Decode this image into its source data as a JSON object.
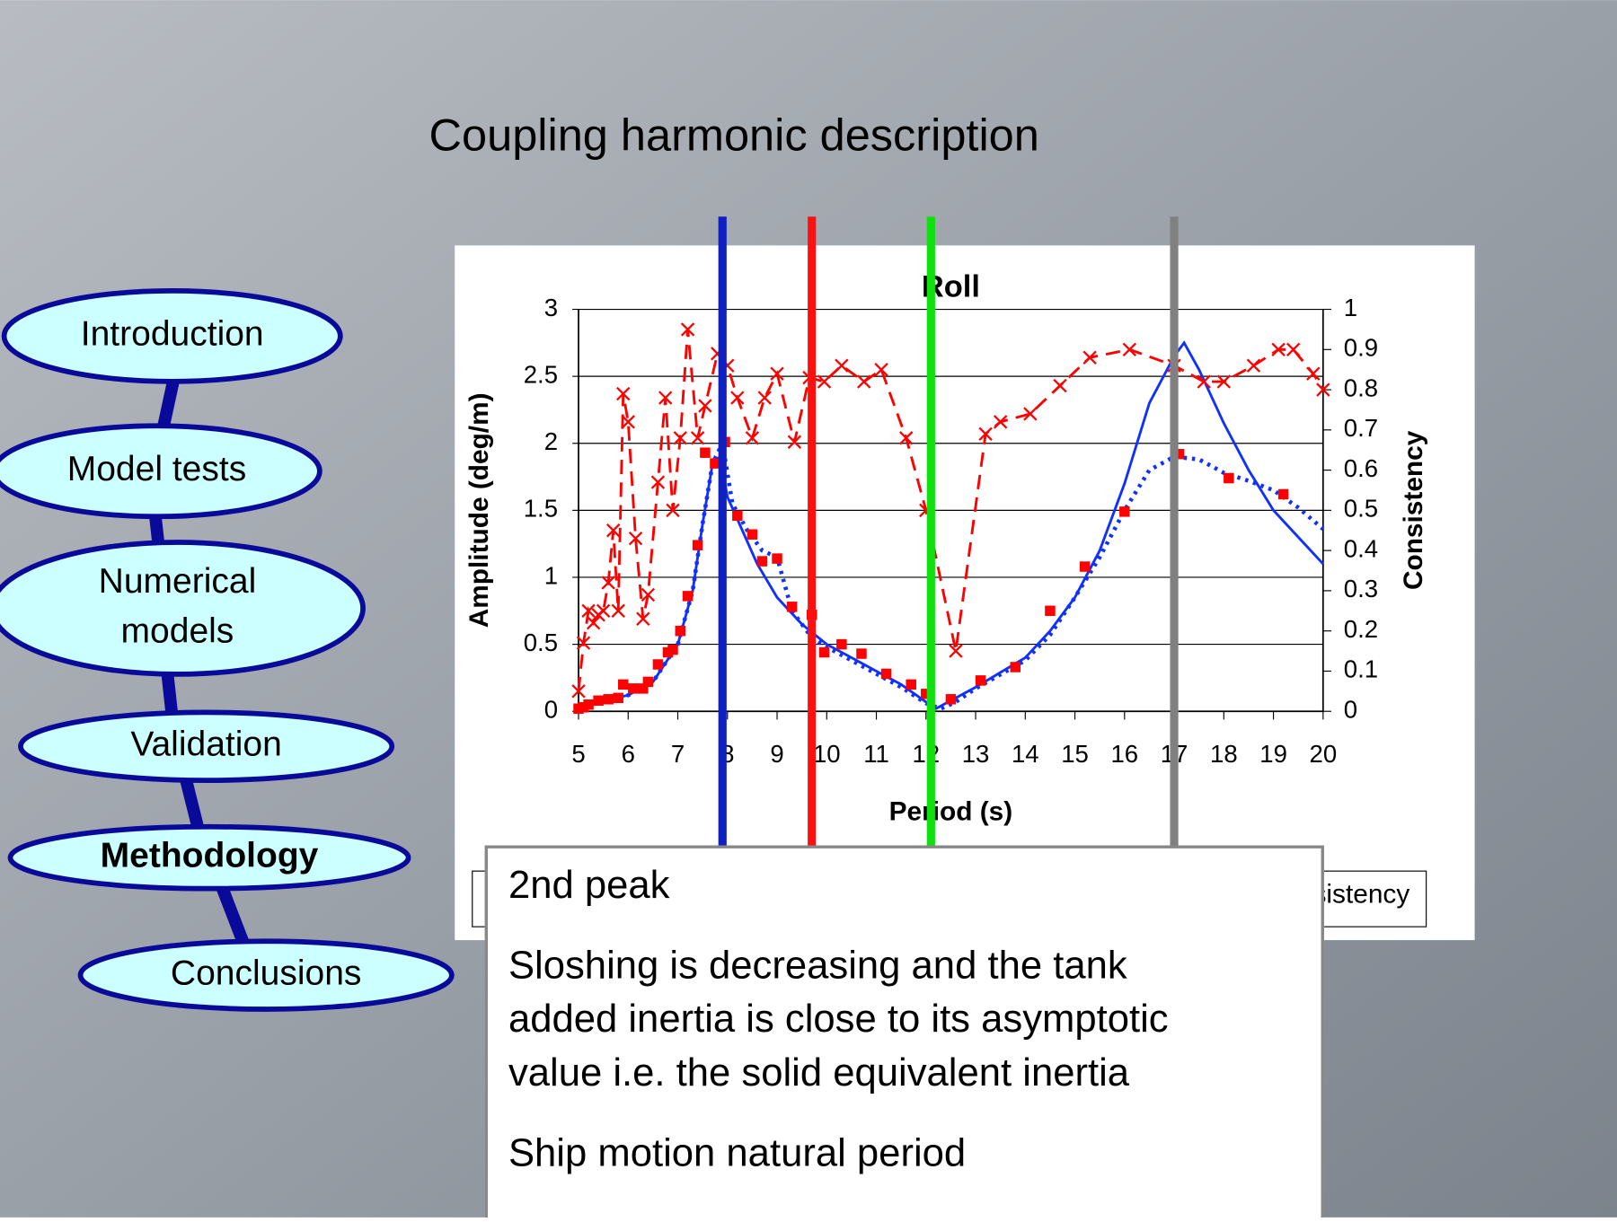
{
  "slide_title": "Coupling harmonic description",
  "nav": [
    [
      "Introduction"
    ],
    [
      "Model tests"
    ],
    [
      "Numerical",
      "models"
    ],
    [
      "Validation"
    ],
    [
      "Methodology"
    ],
    [
      "Conclusions"
    ]
  ],
  "callout": {
    "heading": "2nd peak",
    "lines": [
      "Sloshing is decreasing and the tank",
      "added inertia is close to its asymptotic",
      "value i.e. the solid equivalent inertia"
    ],
    "footer": "Ship motion natural period"
  },
  "chart_data": {
    "type": "line",
    "title": "Roll",
    "xlabel": "Period (s)",
    "ylabel": "Amplitude (deg/m)",
    "y2label": "Consistency",
    "xlim": [
      5,
      20
    ],
    "xticks": [
      5,
      6,
      7,
      8,
      9,
      10,
      11,
      12,
      13,
      14,
      15,
      16,
      17,
      18,
      19,
      20
    ],
    "ylim": [
      0,
      3
    ],
    "yticks": [
      0,
      0.5,
      1,
      1.5,
      2,
      2.5,
      3
    ],
    "y2lim": [
      0,
      1
    ],
    "y2ticks": [
      0,
      0.1,
      0.2,
      0.3,
      0.4,
      0.5,
      0.6,
      0.7,
      0.8,
      0.9,
      1
    ],
    "grid": true,
    "markers": [
      {
        "x": 7.9,
        "color": "#1020c0"
      },
      {
        "x": 9.7,
        "color": "#ff1010"
      },
      {
        "x": 12.1,
        "color": "#10e010"
      },
      {
        "x": 17.0,
        "color": "#808080"
      }
    ],
    "series": [
      {
        "color": "#1030ff",
        "style": "solid",
        "x": [
          5,
          5.5,
          6,
          6.5,
          7,
          7.3,
          7.5,
          7.7,
          7.85,
          8,
          8.3,
          8.6,
          9,
          9.5,
          10,
          10.5,
          11,
          11.5,
          12,
          12.2,
          12.5,
          13,
          14,
          14.5,
          15,
          15.5,
          16,
          16.5,
          17,
          17.2,
          17.5,
          18,
          18.5,
          19,
          19.5,
          20
        ],
        "y": [
          0.05,
          0.08,
          0.12,
          0.22,
          0.5,
          0.9,
          1.4,
          1.85,
          1.9,
          1.6,
          1.35,
          1.1,
          0.85,
          0.65,
          0.5,
          0.4,
          0.3,
          0.2,
          0.07,
          0.02,
          0.08,
          0.18,
          0.4,
          0.6,
          0.85,
          1.2,
          1.7,
          2.3,
          2.65,
          2.75,
          2.55,
          2.15,
          1.8,
          1.5,
          1.3,
          1.1
        ]
      },
      {
        "color": "#1030ff",
        "style": "dotted",
        "x": [
          5,
          5.5,
          6,
          6.5,
          7,
          7.3,
          7.5,
          7.7,
          7.9,
          8.1,
          8.4,
          8.7,
          9,
          9.3,
          9.7,
          10,
          10.5,
          11,
          11.5,
          12,
          12.3,
          12.6,
          13,
          14,
          14.5,
          15,
          15.5,
          16,
          16.5,
          17,
          17.5,
          18,
          18.5,
          19,
          19.5,
          20
        ],
        "y": [
          0.04,
          0.07,
          0.12,
          0.22,
          0.5,
          0.9,
          1.4,
          1.85,
          2.0,
          1.55,
          1.35,
          1.2,
          1.15,
          0.75,
          0.55,
          0.48,
          0.38,
          0.28,
          0.18,
          0.06,
          0.02,
          0.07,
          0.17,
          0.38,
          0.57,
          0.85,
          1.15,
          1.5,
          1.8,
          1.9,
          1.88,
          1.78,
          1.72,
          1.65,
          1.52,
          1.36
        ]
      },
      {
        "color": "#ff0000",
        "style": "none",
        "marker": "square",
        "x": [
          5,
          5.1,
          5.2,
          5.4,
          5.6,
          5.8,
          5.9,
          6.1,
          6.3,
          6.4,
          6.6,
          6.8,
          6.9,
          7.05,
          7.2,
          7.4,
          7.55,
          7.75,
          7.95,
          8.2,
          8.5,
          8.7,
          9.0,
          9.3,
          9.7,
          9.95,
          10.3,
          10.7,
          11.2,
          11.7,
          12.0,
          12.5,
          13.1,
          13.8,
          14.5,
          15.2,
          16.0,
          17.1,
          18.1,
          19.2
        ],
        "y": [
          0.02,
          0.03,
          0.05,
          0.08,
          0.09,
          0.1,
          0.2,
          0.17,
          0.17,
          0.22,
          0.35,
          0.44,
          0.46,
          0.6,
          0.86,
          1.24,
          1.93,
          1.85,
          2.01,
          1.46,
          1.32,
          1.12,
          1.14,
          0.78,
          0.72,
          0.44,
          0.5,
          0.43,
          0.28,
          0.2,
          0.13,
          0.09,
          0.23,
          0.33,
          0.75,
          1.08,
          1.49,
          1.92,
          1.74,
          1.62
        ]
      },
      {
        "name": "Consistency",
        "axis": "y2",
        "color": "#ff0000",
        "style": "dashed",
        "marker": "x",
        "x": [
          5,
          5.1,
          5.2,
          5.3,
          5.4,
          5.5,
          5.6,
          5.7,
          5.8,
          5.9,
          6.0,
          6.15,
          6.3,
          6.4,
          6.6,
          6.75,
          6.9,
          7.05,
          7.2,
          7.4,
          7.55,
          7.8,
          8.0,
          8.2,
          8.5,
          8.75,
          9.0,
          9.35,
          9.65,
          9.95,
          10.3,
          10.75,
          11.1,
          11.6,
          12.0,
          12.6,
          13.2,
          13.5,
          14.1,
          14.7,
          15.3,
          16.1,
          17.0,
          17.6,
          18.0,
          18.6,
          19.1,
          19.4,
          19.8,
          20.0
        ],
        "y": [
          0.05,
          0.17,
          0.25,
          0.22,
          0.24,
          0.25,
          0.32,
          0.45,
          0.25,
          0.79,
          0.72,
          0.43,
          0.23,
          0.29,
          0.57,
          0.78,
          0.5,
          0.68,
          0.95,
          0.68,
          0.76,
          0.89,
          0.86,
          0.78,
          0.68,
          0.78,
          0.84,
          0.67,
          0.83,
          0.82,
          0.86,
          0.82,
          0.85,
          0.68,
          0.5,
          0.15,
          0.69,
          0.72,
          0.74,
          0.81,
          0.88,
          0.9,
          0.86,
          0.82,
          0.82,
          0.86,
          0.9,
          0.9,
          0.84,
          0.8
        ]
      }
    ]
  }
}
